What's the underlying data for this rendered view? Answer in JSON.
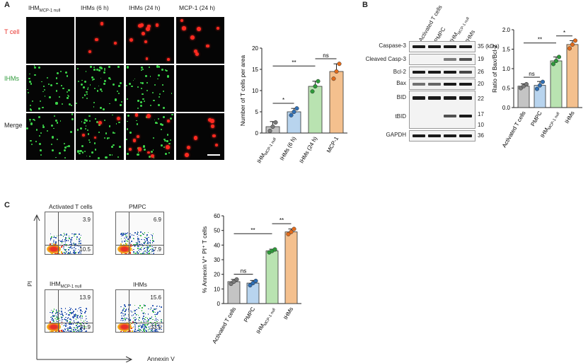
{
  "panel_a": {
    "letter": "A",
    "columns": [
      "IHM",
      "IHMs (6 h)",
      "IHMs (24 h)",
      "MCP-1 (24 h)"
    ],
    "col1_subscript": "MCP-1 null",
    "rows": [
      "T cell",
      "IHMs",
      "Merge"
    ]
  },
  "panel_b": {
    "letter": "B",
    "lanes": [
      "Activated T cells",
      "PMPC",
      "IHM",
      "IHMs"
    ],
    "lane3_subscript": "MCP-1 null",
    "proteins": [
      "Caspase-3",
      "Cleaved Casp-3",
      "Bcl-2",
      "Bax",
      "BID",
      "tBID",
      "GAPDH"
    ],
    "kda": [
      "35 (kDa)",
      "19",
      "26",
      "20",
      "22",
      "17",
      "10",
      "36"
    ]
  },
  "panel_c": {
    "letter": "C",
    "plots": [
      {
        "title": "Activated T cells",
        "subscript": "",
        "ur": "3.9",
        "lr": "10.5"
      },
      {
        "title": "PMPC",
        "subscript": "",
        "ur": "6.9",
        "lr": "7.9"
      },
      {
        "title": "IHM",
        "subscript": "MCP-1 null",
        "ur": "13.9",
        "lr": "21.9"
      },
      {
        "title": "IHMs",
        "subscript": "",
        "ur": "15.6",
        "lr": "33.5"
      }
    ],
    "y_axis": "PI",
    "x_axis": "Annexin V"
  },
  "colors": {
    "grey": "#c4c4c4",
    "blue": "#b8d4ee",
    "green": "#b9e3b1",
    "orange": "#f4c08e",
    "dot_grey": "#7a7a7a",
    "dot_blue": "#2f6fb5",
    "dot_green": "#2e9a3a",
    "dot_orange": "#e36c1c"
  },
  "chart_data": [
    {
      "type": "bar",
      "ylabel": "Number of T cells per area",
      "categories": [
        "IHM",
        "IHMs (6 h)",
        "IHMs (24 h)",
        "MCP-1"
      ],
      "category_subscripts": [
        "MCP-1 null",
        "",
        "",
        ""
      ],
      "values": [
        1.5,
        5,
        11,
        14.5
      ],
      "errors": [
        1.2,
        0.8,
        1.2,
        1.8
      ],
      "points": [
        [
          0.5,
          1.5,
          2.5
        ],
        [
          4.2,
          5,
          5.8
        ],
        [
          9.8,
          11,
          12.2
        ],
        [
          12.8,
          14.5,
          16.3
        ]
      ],
      "ylim": [
        0,
        20
      ],
      "yticks": [
        "0",
        "5",
        "10",
        "15",
        "20"
      ],
      "significance": [
        {
          "from": 1,
          "to": 2,
          "label": "*"
        },
        {
          "from": 1,
          "to": 3,
          "label": "**"
        },
        {
          "from": 3,
          "to": 4,
          "label": "ns"
        }
      ]
    },
    {
      "type": "bar",
      "ylabel": "Ratio of Bax/Bcl-2",
      "categories": [
        "Activated T cells",
        "PMPC",
        "IHM",
        "IHMs"
      ],
      "category_subscripts": [
        "",
        "",
        "MCP-1 null",
        ""
      ],
      "values": [
        0.55,
        0.57,
        1.2,
        1.62
      ],
      "errors": [
        0.06,
        0.1,
        0.1,
        0.1
      ],
      "points": [
        [
          0.5,
          0.55,
          0.6
        ],
        [
          0.48,
          0.57,
          0.66
        ],
        [
          1.12,
          1.2,
          1.3
        ],
        [
          1.52,
          1.62,
          1.72
        ]
      ],
      "ylim": [
        0,
        2.0
      ],
      "yticks": [
        "0.0",
        "0.5",
        "1.0",
        "1.5",
        "2.0"
      ],
      "significance": [
        {
          "from": 1,
          "to": 2,
          "label": "ns"
        },
        {
          "from": 1,
          "to": 3,
          "label": "**"
        },
        {
          "from": 3,
          "to": 4,
          "label": "*"
        }
      ]
    },
    {
      "type": "bar",
      "ylabel": "% Annexin V⁺ PI⁺ T cells",
      "categories": [
        "Activated T cells",
        "PMPC",
        "IHM",
        "IHMs"
      ],
      "category_subscripts": [
        "",
        "",
        "MCP-1 null",
        ""
      ],
      "values": [
        15,
        14,
        36,
        49
      ],
      "errors": [
        1.5,
        1.8,
        1.2,
        2
      ],
      "points": [
        [
          13.5,
          15,
          16.5
        ],
        [
          12.5,
          14,
          15.5
        ],
        [
          35,
          36,
          37
        ],
        [
          47.5,
          49,
          51
        ]
      ],
      "ylim": [
        0,
        60
      ],
      "yticks": [
        "0",
        "10",
        "20",
        "30",
        "40",
        "50",
        "60"
      ],
      "significance": [
        {
          "from": 1,
          "to": 2,
          "label": "ns"
        },
        {
          "from": 1,
          "to": 3,
          "label": "**"
        },
        {
          "from": 3,
          "to": 4,
          "label": "**"
        }
      ]
    }
  ]
}
